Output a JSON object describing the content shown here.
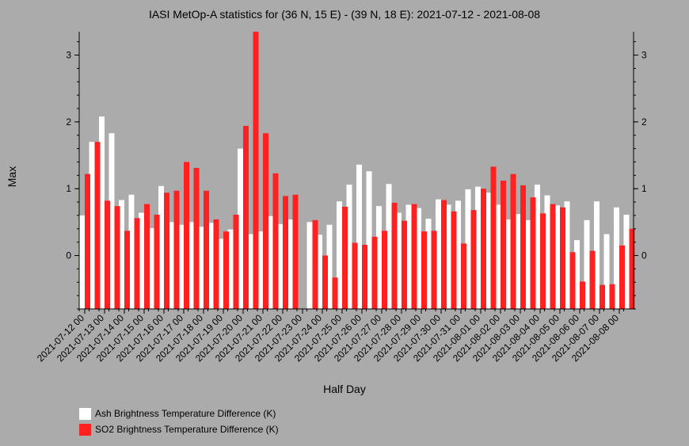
{
  "chart_data": {
    "type": "bar",
    "title": "IASI MetOp-A statistics for (36 N, 15 E) - (39 N, 18 E): 2021-07-12 - 2021-08-08",
    "xlabel": "Half Day",
    "ylabel": "Max",
    "ylim": [
      -0.8,
      3.35
    ],
    "yticks": [
      0,
      1,
      2,
      3
    ],
    "grid": false,
    "legend_position": "bottom-left",
    "tick_labels": [
      "2021-07-12 00",
      "2021-07-13 00",
      "2021-07-14 00",
      "2021-07-15 00",
      "2021-07-16 00",
      "2021-07-17 00",
      "2021-07-18 00",
      "2021-07-19 00",
      "2021-07-20 00",
      "2021-07-21 00",
      "2021-07-22 00",
      "2021-07-23 00",
      "2021-07-24 00",
      "2021-07-25 00",
      "2021-07-26 00",
      "2021-07-27 00",
      "2021-07-28 00",
      "2021-07-29 00",
      "2021-07-30 00",
      "2021-07-31 00",
      "2021-08-01 00",
      "2021-08-02 00",
      "2021-08-03 00",
      "2021-08-04 00",
      "2021-08-05 00",
      "2021-08-06 00",
      "2021-08-07 00",
      "2021-08-08 00"
    ],
    "series": [
      {
        "name": "Ash Brightness Temperature Difference (K)",
        "color": "#ffffff",
        "values": [
          0.6,
          1.7,
          2.08,
          1.83,
          0.83,
          0.91,
          0.64,
          0.41,
          1.04,
          0.5,
          0.46,
          0.5,
          0.43,
          0.49,
          0.25,
          0.39,
          1.6,
          0.32,
          0.36,
          0.59,
          0.47,
          0.54,
          null,
          0.5,
          0.31,
          0.46,
          0.81,
          1.06,
          1.36,
          1.26,
          0.74,
          1.07,
          0.64,
          0.76,
          0.71,
          0.55,
          0.84,
          0.76,
          0.82,
          0.99,
          1.03,
          0.94,
          0.76,
          0.54,
          0.62,
          0.53,
          1.06,
          0.9,
          0.75,
          0.81,
          0.23,
          0.53,
          0.81,
          0.32,
          0.72,
          0.61
        ]
      },
      {
        "name": "SO2 Brightness Temperature Difference (K)",
        "color": "#ff2020",
        "values": [
          1.22,
          1.7,
          0.82,
          0.74,
          0.37,
          0.56,
          0.77,
          0.61,
          0.94,
          0.97,
          1.4,
          1.31,
          0.97,
          0.54,
          0.36,
          0.61,
          1.94,
          3.35,
          1.83,
          1.23,
          0.89,
          0.91,
          null,
          0.53,
          0.0,
          -0.33,
          0.73,
          0.19,
          0.16,
          0.28,
          0.37,
          0.79,
          0.52,
          0.77,
          0.36,
          0.37,
          0.83,
          0.66,
          0.18,
          0.68,
          1.0,
          1.33,
          1.12,
          1.22,
          1.05,
          0.87,
          0.63,
          0.77,
          0.72,
          0.05,
          -0.39,
          0.07,
          -0.44,
          -0.43,
          0.15,
          0.4
        ]
      }
    ]
  }
}
